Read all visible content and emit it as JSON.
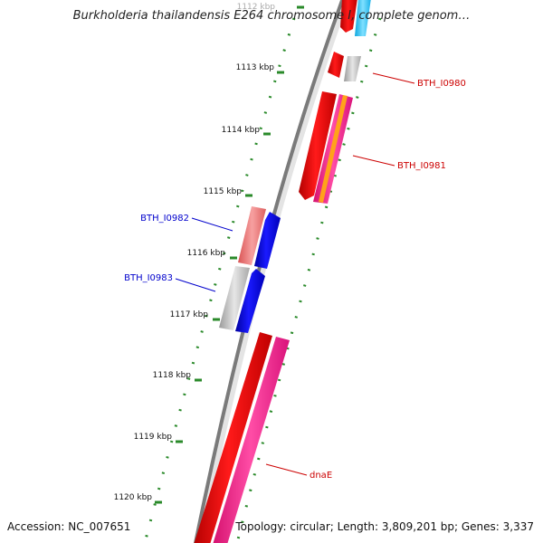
{
  "title": "Burkholderia thailandensis E264 chromosome I, complete genom…",
  "footer": {
    "accession": "Accession: NC_007651",
    "summary": "Topology: circular; Length: 3,809,201 bp; Genes: 3,337"
  },
  "ticks": [
    {
      "label": "1112 kbp",
      "kbp": 1112
    },
    {
      "label": "1113 kbp",
      "kbp": 1113
    },
    {
      "label": "1114 kbp",
      "kbp": 1114
    },
    {
      "label": "1115 kbp",
      "kbp": 1115
    },
    {
      "label": "1116 kbp",
      "kbp": 1116
    },
    {
      "label": "1117 kbp",
      "kbp": 1117
    },
    {
      "label": "1118 kbp",
      "kbp": 1118
    },
    {
      "label": "1119 kbp",
      "kbp": 1119
    },
    {
      "label": "1120 kbp",
      "kbp": 1120
    }
  ],
  "gene_labels": [
    {
      "name": "BTH_I0980",
      "color": "#cc0000",
      "side": "right"
    },
    {
      "name": "BTH_I0981",
      "color": "#cc0000",
      "side": "right"
    },
    {
      "name": "BTH_I0982",
      "color": "#0000cc",
      "side": "left"
    },
    {
      "name": "BTH_I0983",
      "color": "#0000cc",
      "side": "left"
    },
    {
      "name": "dnaE",
      "color": "#cc0000",
      "side": "right"
    }
  ],
  "colors": {
    "forward_gene": "#ff0000",
    "reverse_gene": "#0000ff",
    "grey_feature": "#bdbdbd",
    "pink_feature": "#ff3399",
    "salmon_feature": "#ee7777",
    "cyan_feature": "#33ccff",
    "backbone": "#7a7a7a",
    "ticks": "#2a8a2a"
  }
}
